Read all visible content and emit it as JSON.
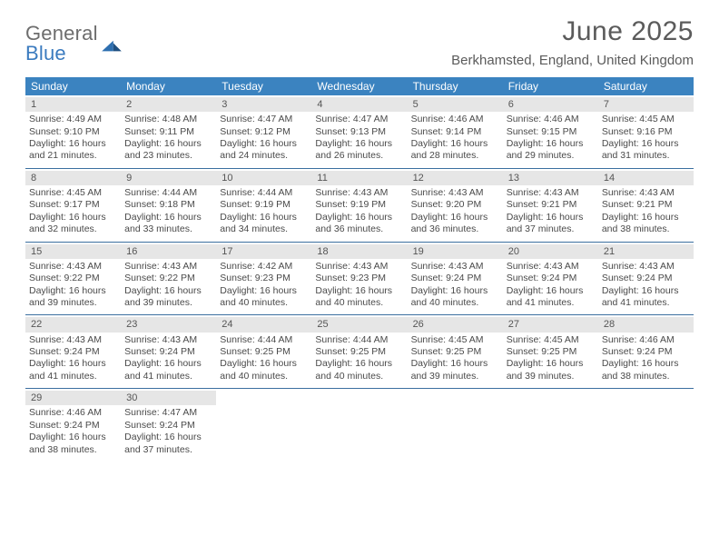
{
  "brand": {
    "word1": "General",
    "word2": "Blue"
  },
  "title": "June 2025",
  "location": "Berkhamsted, England, United Kingdom",
  "colors": {
    "header_bg": "#3b83c0",
    "header_text": "#ffffff",
    "rule": "#3b6fa0",
    "daynum_bg": "#e6e6e6",
    "body_text": "#4a4a4a",
    "title_text": "#5b5b5b",
    "logo_gray": "#6d6d6d",
    "logo_blue": "#3b7bbf",
    "page_bg": "#ffffff"
  },
  "dow": [
    "Sunday",
    "Monday",
    "Tuesday",
    "Wednesday",
    "Thursday",
    "Friday",
    "Saturday"
  ],
  "weeks": [
    [
      {
        "n": "1",
        "sr": "Sunrise: 4:49 AM",
        "ss": "Sunset: 9:10 PM",
        "d1": "Daylight: 16 hours",
        "d2": "and 21 minutes."
      },
      {
        "n": "2",
        "sr": "Sunrise: 4:48 AM",
        "ss": "Sunset: 9:11 PM",
        "d1": "Daylight: 16 hours",
        "d2": "and 23 minutes."
      },
      {
        "n": "3",
        "sr": "Sunrise: 4:47 AM",
        "ss": "Sunset: 9:12 PM",
        "d1": "Daylight: 16 hours",
        "d2": "and 24 minutes."
      },
      {
        "n": "4",
        "sr": "Sunrise: 4:47 AM",
        "ss": "Sunset: 9:13 PM",
        "d1": "Daylight: 16 hours",
        "d2": "and 26 minutes."
      },
      {
        "n": "5",
        "sr": "Sunrise: 4:46 AM",
        "ss": "Sunset: 9:14 PM",
        "d1": "Daylight: 16 hours",
        "d2": "and 28 minutes."
      },
      {
        "n": "6",
        "sr": "Sunrise: 4:46 AM",
        "ss": "Sunset: 9:15 PM",
        "d1": "Daylight: 16 hours",
        "d2": "and 29 minutes."
      },
      {
        "n": "7",
        "sr": "Sunrise: 4:45 AM",
        "ss": "Sunset: 9:16 PM",
        "d1": "Daylight: 16 hours",
        "d2": "and 31 minutes."
      }
    ],
    [
      {
        "n": "8",
        "sr": "Sunrise: 4:45 AM",
        "ss": "Sunset: 9:17 PM",
        "d1": "Daylight: 16 hours",
        "d2": "and 32 minutes."
      },
      {
        "n": "9",
        "sr": "Sunrise: 4:44 AM",
        "ss": "Sunset: 9:18 PM",
        "d1": "Daylight: 16 hours",
        "d2": "and 33 minutes."
      },
      {
        "n": "10",
        "sr": "Sunrise: 4:44 AM",
        "ss": "Sunset: 9:19 PM",
        "d1": "Daylight: 16 hours",
        "d2": "and 34 minutes."
      },
      {
        "n": "11",
        "sr": "Sunrise: 4:43 AM",
        "ss": "Sunset: 9:19 PM",
        "d1": "Daylight: 16 hours",
        "d2": "and 36 minutes."
      },
      {
        "n": "12",
        "sr": "Sunrise: 4:43 AM",
        "ss": "Sunset: 9:20 PM",
        "d1": "Daylight: 16 hours",
        "d2": "and 36 minutes."
      },
      {
        "n": "13",
        "sr": "Sunrise: 4:43 AM",
        "ss": "Sunset: 9:21 PM",
        "d1": "Daylight: 16 hours",
        "d2": "and 37 minutes."
      },
      {
        "n": "14",
        "sr": "Sunrise: 4:43 AM",
        "ss": "Sunset: 9:21 PM",
        "d1": "Daylight: 16 hours",
        "d2": "and 38 minutes."
      }
    ],
    [
      {
        "n": "15",
        "sr": "Sunrise: 4:43 AM",
        "ss": "Sunset: 9:22 PM",
        "d1": "Daylight: 16 hours",
        "d2": "and 39 minutes."
      },
      {
        "n": "16",
        "sr": "Sunrise: 4:43 AM",
        "ss": "Sunset: 9:22 PM",
        "d1": "Daylight: 16 hours",
        "d2": "and 39 minutes."
      },
      {
        "n": "17",
        "sr": "Sunrise: 4:42 AM",
        "ss": "Sunset: 9:23 PM",
        "d1": "Daylight: 16 hours",
        "d2": "and 40 minutes."
      },
      {
        "n": "18",
        "sr": "Sunrise: 4:43 AM",
        "ss": "Sunset: 9:23 PM",
        "d1": "Daylight: 16 hours",
        "d2": "and 40 minutes."
      },
      {
        "n": "19",
        "sr": "Sunrise: 4:43 AM",
        "ss": "Sunset: 9:24 PM",
        "d1": "Daylight: 16 hours",
        "d2": "and 40 minutes."
      },
      {
        "n": "20",
        "sr": "Sunrise: 4:43 AM",
        "ss": "Sunset: 9:24 PM",
        "d1": "Daylight: 16 hours",
        "d2": "and 41 minutes."
      },
      {
        "n": "21",
        "sr": "Sunrise: 4:43 AM",
        "ss": "Sunset: 9:24 PM",
        "d1": "Daylight: 16 hours",
        "d2": "and 41 minutes."
      }
    ],
    [
      {
        "n": "22",
        "sr": "Sunrise: 4:43 AM",
        "ss": "Sunset: 9:24 PM",
        "d1": "Daylight: 16 hours",
        "d2": "and 41 minutes."
      },
      {
        "n": "23",
        "sr": "Sunrise: 4:43 AM",
        "ss": "Sunset: 9:24 PM",
        "d1": "Daylight: 16 hours",
        "d2": "and 41 minutes."
      },
      {
        "n": "24",
        "sr": "Sunrise: 4:44 AM",
        "ss": "Sunset: 9:25 PM",
        "d1": "Daylight: 16 hours",
        "d2": "and 40 minutes."
      },
      {
        "n": "25",
        "sr": "Sunrise: 4:44 AM",
        "ss": "Sunset: 9:25 PM",
        "d1": "Daylight: 16 hours",
        "d2": "and 40 minutes."
      },
      {
        "n": "26",
        "sr": "Sunrise: 4:45 AM",
        "ss": "Sunset: 9:25 PM",
        "d1": "Daylight: 16 hours",
        "d2": "and 39 minutes."
      },
      {
        "n": "27",
        "sr": "Sunrise: 4:45 AM",
        "ss": "Sunset: 9:25 PM",
        "d1": "Daylight: 16 hours",
        "d2": "and 39 minutes."
      },
      {
        "n": "28",
        "sr": "Sunrise: 4:46 AM",
        "ss": "Sunset: 9:24 PM",
        "d1": "Daylight: 16 hours",
        "d2": "and 38 minutes."
      }
    ],
    [
      {
        "n": "29",
        "sr": "Sunrise: 4:46 AM",
        "ss": "Sunset: 9:24 PM",
        "d1": "Daylight: 16 hours",
        "d2": "and 38 minutes."
      },
      {
        "n": "30",
        "sr": "Sunrise: 4:47 AM",
        "ss": "Sunset: 9:24 PM",
        "d1": "Daylight: 16 hours",
        "d2": "and 37 minutes."
      },
      null,
      null,
      null,
      null,
      null
    ]
  ]
}
